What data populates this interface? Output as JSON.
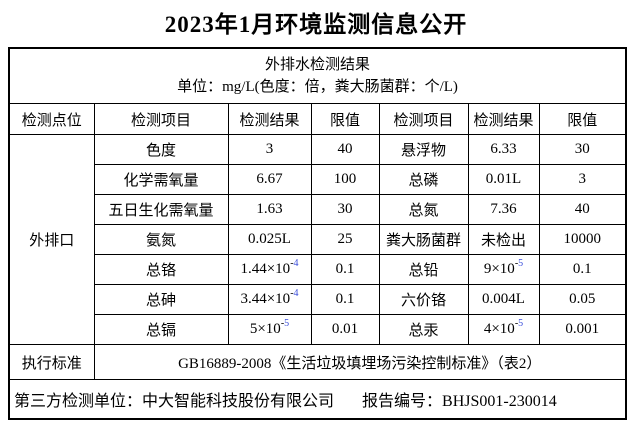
{
  "page_title": "2023年1月环境监测信息公开",
  "table": {
    "caption_line1": "外排水检测结果",
    "caption_line2": "单位：mg/L(色度：倍，粪大肠菌群：个/L)",
    "columns": [
      "检测点位",
      "检测项目",
      "检测结果",
      "限值",
      "检测项目",
      "检测结果",
      "限值"
    ],
    "site_label": "外排口",
    "rows": [
      {
        "item1": "色度",
        "result1": "3",
        "limit1": "40",
        "item2": "悬浮物",
        "result2": "6.33",
        "limit2": "30"
      },
      {
        "item1": "化学需氧量",
        "result1": "6.67",
        "limit1": "100",
        "item2": "总磷",
        "result2": "0.01L",
        "limit2": "3"
      },
      {
        "item1": "五日生化需氧量",
        "result1": "1.63",
        "limit1": "30",
        "item2": "总氮",
        "result2": "7.36",
        "limit2": "40"
      },
      {
        "item1": "氨氮",
        "result1": "0.025L",
        "limit1": "25",
        "item2": "粪大肠菌群",
        "result2": "未检出",
        "limit2": "10000"
      },
      {
        "item1": "总铬",
        "result1": "1.44×10^-4",
        "limit1": "0.1",
        "item2": "总铅",
        "result2": "9×10^-5",
        "limit2": "0.1"
      },
      {
        "item1": "总砷",
        "result1": "3.44×10^-4",
        "limit1": "0.1",
        "item2": "六价铬",
        "result2": "0.004L",
        "limit2": "0.05"
      },
      {
        "item1": "总镉",
        "result1": "5×10^-5",
        "limit1": "0.01",
        "item2": "总汞",
        "result2": "4×10^-5",
        "limit2": "0.001"
      }
    ],
    "standard_label": "执行标准",
    "standard_value": "GB16889-2008《生活垃圾填埋场污染控制标准》（表2）",
    "footer": {
      "third_party": "第三方检测单位：中大智能科技股份有限公司",
      "report_no": "报告编号：BHJS001-230014"
    }
  },
  "colors": {
    "exponent_digit": "#3c50dc",
    "border": "#000000",
    "background": "#ffffff"
  }
}
